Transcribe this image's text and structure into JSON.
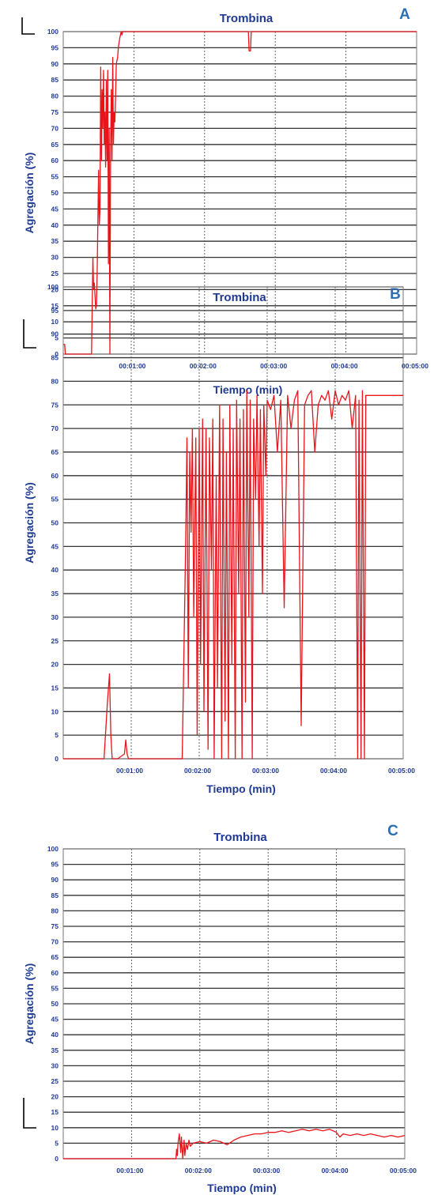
{
  "chart_data": [
    {
      "panel": "A",
      "type": "line",
      "title": "Trombina",
      "xlabel": "Tiempo (min)",
      "ylabel": "Agregación (%)",
      "ylim": [
        0,
        100
      ],
      "xlim_min": [
        0,
        5
      ],
      "yticks": [
        "0",
        "5",
        "10",
        "15",
        "20",
        "25",
        "30",
        "35",
        "40",
        "45",
        "50",
        "55",
        "60",
        "65",
        "70",
        "75",
        "80",
        "85",
        "90",
        "95",
        "100"
      ],
      "xticks": [
        {
          "label": "00:01:00",
          "value_min": 1
        },
        {
          "label": "00:02:00",
          "value_min": 2
        },
        {
          "label": "00:03:00",
          "value_min": 3
        },
        {
          "label": "00:04:00",
          "value_min": 4
        },
        {
          "label": "00:05:00",
          "value_min": 5
        }
      ],
      "grid": true,
      "color": "#e8141a",
      "series": [
        {
          "x": [
            0,
            0.02,
            0.03,
            0.05,
            0.1,
            0.2,
            0.3,
            0.4,
            0.42,
            0.43,
            0.44,
            0.46,
            0.47,
            0.48,
            0.5,
            0.51,
            0.52,
            0.53,
            0.54,
            0.55,
            0.56,
            0.57,
            0.58,
            0.59,
            0.6,
            0.61,
            0.62,
            0.63,
            0.64,
            0.65,
            0.66,
            0.67,
            0.68,
            0.69,
            0.7,
            0.71,
            0.72,
            0.73,
            0.74,
            0.75,
            0.77,
            0.78,
            0.8,
            0.82,
            0.83,
            0.84,
            0.86,
            0.88,
            0.9,
            0.95,
            1.0,
            1.5,
            2.0,
            2.4,
            2.6,
            2.62,
            2.63,
            2.65,
            2.66,
            2.68,
            2.7,
            3.0,
            4.0,
            5.0
          ],
          "y": [
            3,
            3,
            0,
            0,
            0,
            0,
            0,
            0,
            30,
            20,
            22,
            14,
            15,
            25,
            57,
            40,
            45,
            89,
            60,
            82,
            70,
            88,
            65,
            75,
            58,
            85,
            60,
            88,
            28,
            70,
            0,
            65,
            82,
            60,
            92,
            65,
            75,
            72,
            80,
            90,
            92,
            95,
            98,
            100,
            99,
            100,
            100,
            100,
            100,
            100,
            100,
            100,
            100,
            100,
            100,
            100,
            94,
            94,
            100,
            100,
            100,
            100,
            100,
            100
          ]
        }
      ]
    },
    {
      "panel": "B",
      "type": "line",
      "title": "Trombina",
      "xlabel": "Tiempo (min)",
      "ylabel": "Agregación (%)",
      "ylim": [
        0,
        100
      ],
      "xlim_min": [
        0,
        5
      ],
      "yticks": [
        "0",
        "5",
        "10",
        "15",
        "20",
        "25",
        "30",
        "35",
        "40",
        "45",
        "50",
        "55",
        "60",
        "65",
        "70",
        "75",
        "80",
        "85",
        "90",
        "95",
        "100"
      ],
      "xticks": [
        {
          "label": "00:01:00",
          "value_min": 1
        },
        {
          "label": "00:02:00",
          "value_min": 2
        },
        {
          "label": "00:03:00",
          "value_min": 3
        },
        {
          "label": "00:04:00",
          "value_min": 4
        },
        {
          "label": "00:05:00",
          "value_min": 5
        }
      ],
      "grid": true,
      "color": "#e8141a",
      "series": [
        {
          "x": [
            0,
            0.6,
            0.65,
            0.68,
            0.7,
            0.72,
            0.75,
            0.8,
            0.9,
            0.92,
            0.94,
            0.96,
            1.0,
            1.5,
            1.75,
            1.8,
            1.82,
            1.84,
            1.86,
            1.88,
            1.9,
            1.92,
            1.95,
            1.97,
            2.0,
            2.02,
            2.05,
            2.07,
            2.1,
            2.13,
            2.15,
            2.18,
            2.2,
            2.22,
            2.25,
            2.27,
            2.3,
            2.33,
            2.35,
            2.38,
            2.4,
            2.43,
            2.45,
            2.48,
            2.5,
            2.53,
            2.55,
            2.58,
            2.6,
            2.63,
            2.65,
            2.68,
            2.7,
            2.73,
            2.75,
            2.78,
            2.8,
            2.83,
            2.85,
            2.88,
            2.9,
            2.93,
            2.95,
            2.98,
            3.0,
            3.05,
            3.1,
            3.15,
            3.2,
            3.25,
            3.3,
            3.35,
            3.4,
            3.45,
            3.5,
            3.55,
            3.6,
            3.65,
            3.7,
            3.75,
            3.8,
            3.85,
            3.9,
            3.95,
            4.0,
            4.05,
            4.1,
            4.15,
            4.2,
            4.25,
            4.3,
            4.33,
            4.35,
            4.38,
            4.4,
            4.43,
            4.45,
            4.48,
            4.5,
            5.0
          ],
          "y": [
            0,
            0,
            12,
            18,
            5,
            0,
            0,
            0,
            1,
            4,
            1,
            0,
            0,
            0,
            0,
            45,
            68,
            15,
            65,
            48,
            70,
            30,
            68,
            5,
            70,
            20,
            72,
            10,
            70,
            2,
            68,
            40,
            72,
            0,
            60,
            15,
            75,
            0,
            72,
            8,
            65,
            0,
            75,
            20,
            70,
            0,
            76,
            35,
            72,
            0,
            74,
            12,
            78,
            30,
            76,
            0,
            72,
            55,
            77,
            45,
            74,
            35,
            75,
            60,
            76,
            74,
            77,
            65,
            76,
            32,
            77,
            70,
            76,
            78,
            7,
            75,
            77,
            78,
            65,
            75,
            77,
            76,
            78,
            72,
            78,
            75,
            77,
            76,
            78,
            70,
            77,
            0,
            76,
            0,
            78,
            0,
            77,
            77,
            77,
            77
          ]
        }
      ]
    },
    {
      "panel": "C",
      "type": "line",
      "title": "Trombina",
      "xlabel": "Tiempo (min)",
      "ylabel": "Agregación (%)",
      "ylim": [
        0,
        100
      ],
      "xlim_min": [
        0,
        5
      ],
      "yticks": [
        "0",
        "5",
        "10",
        "15",
        "20",
        "25",
        "30",
        "35",
        "40",
        "45",
        "50",
        "55",
        "60",
        "65",
        "70",
        "75",
        "80",
        "85",
        "90",
        "95",
        "100"
      ],
      "xticks": [
        {
          "label": "00:01:00",
          "value_min": 1
        },
        {
          "label": "00:02:00",
          "value_min": 2
        },
        {
          "label": "00:03:00",
          "value_min": 3
        },
        {
          "label": "00:04:00",
          "value_min": 4
        },
        {
          "label": "00:05:00",
          "value_min": 5
        }
      ],
      "grid": true,
      "color": "#e8141a",
      "series": [
        {
          "x": [
            0,
            1.65,
            1.66,
            1.67,
            1.68,
            1.7,
            1.72,
            1.73,
            1.75,
            1.77,
            1.78,
            1.8,
            1.82,
            1.84,
            1.86,
            1.9,
            2.0,
            2.1,
            2.2,
            2.3,
            2.4,
            2.5,
            2.6,
            2.7,
            2.8,
            2.9,
            3.0,
            3.1,
            3.2,
            3.3,
            3.4,
            3.5,
            3.6,
            3.7,
            3.8,
            3.9,
            4.0,
            4.05,
            4.1,
            4.2,
            4.3,
            4.4,
            4.5,
            4.6,
            4.7,
            4.8,
            4.9,
            5.0
          ],
          "y": [
            0,
            0,
            3,
            1,
            5,
            8,
            2,
            7,
            0,
            6,
            1,
            5,
            3,
            6,
            4,
            5,
            5.5,
            5,
            6,
            5.5,
            4.5,
            6,
            7,
            7.5,
            8,
            8,
            8.5,
            8.5,
            9,
            8.5,
            9,
            9.5,
            9,
            9.5,
            9,
            9.5,
            8.5,
            7,
            8,
            7.5,
            8,
            7.5,
            8,
            7.5,
            7,
            7.5,
            7,
            7.5
          ]
        }
      ]
    }
  ]
}
